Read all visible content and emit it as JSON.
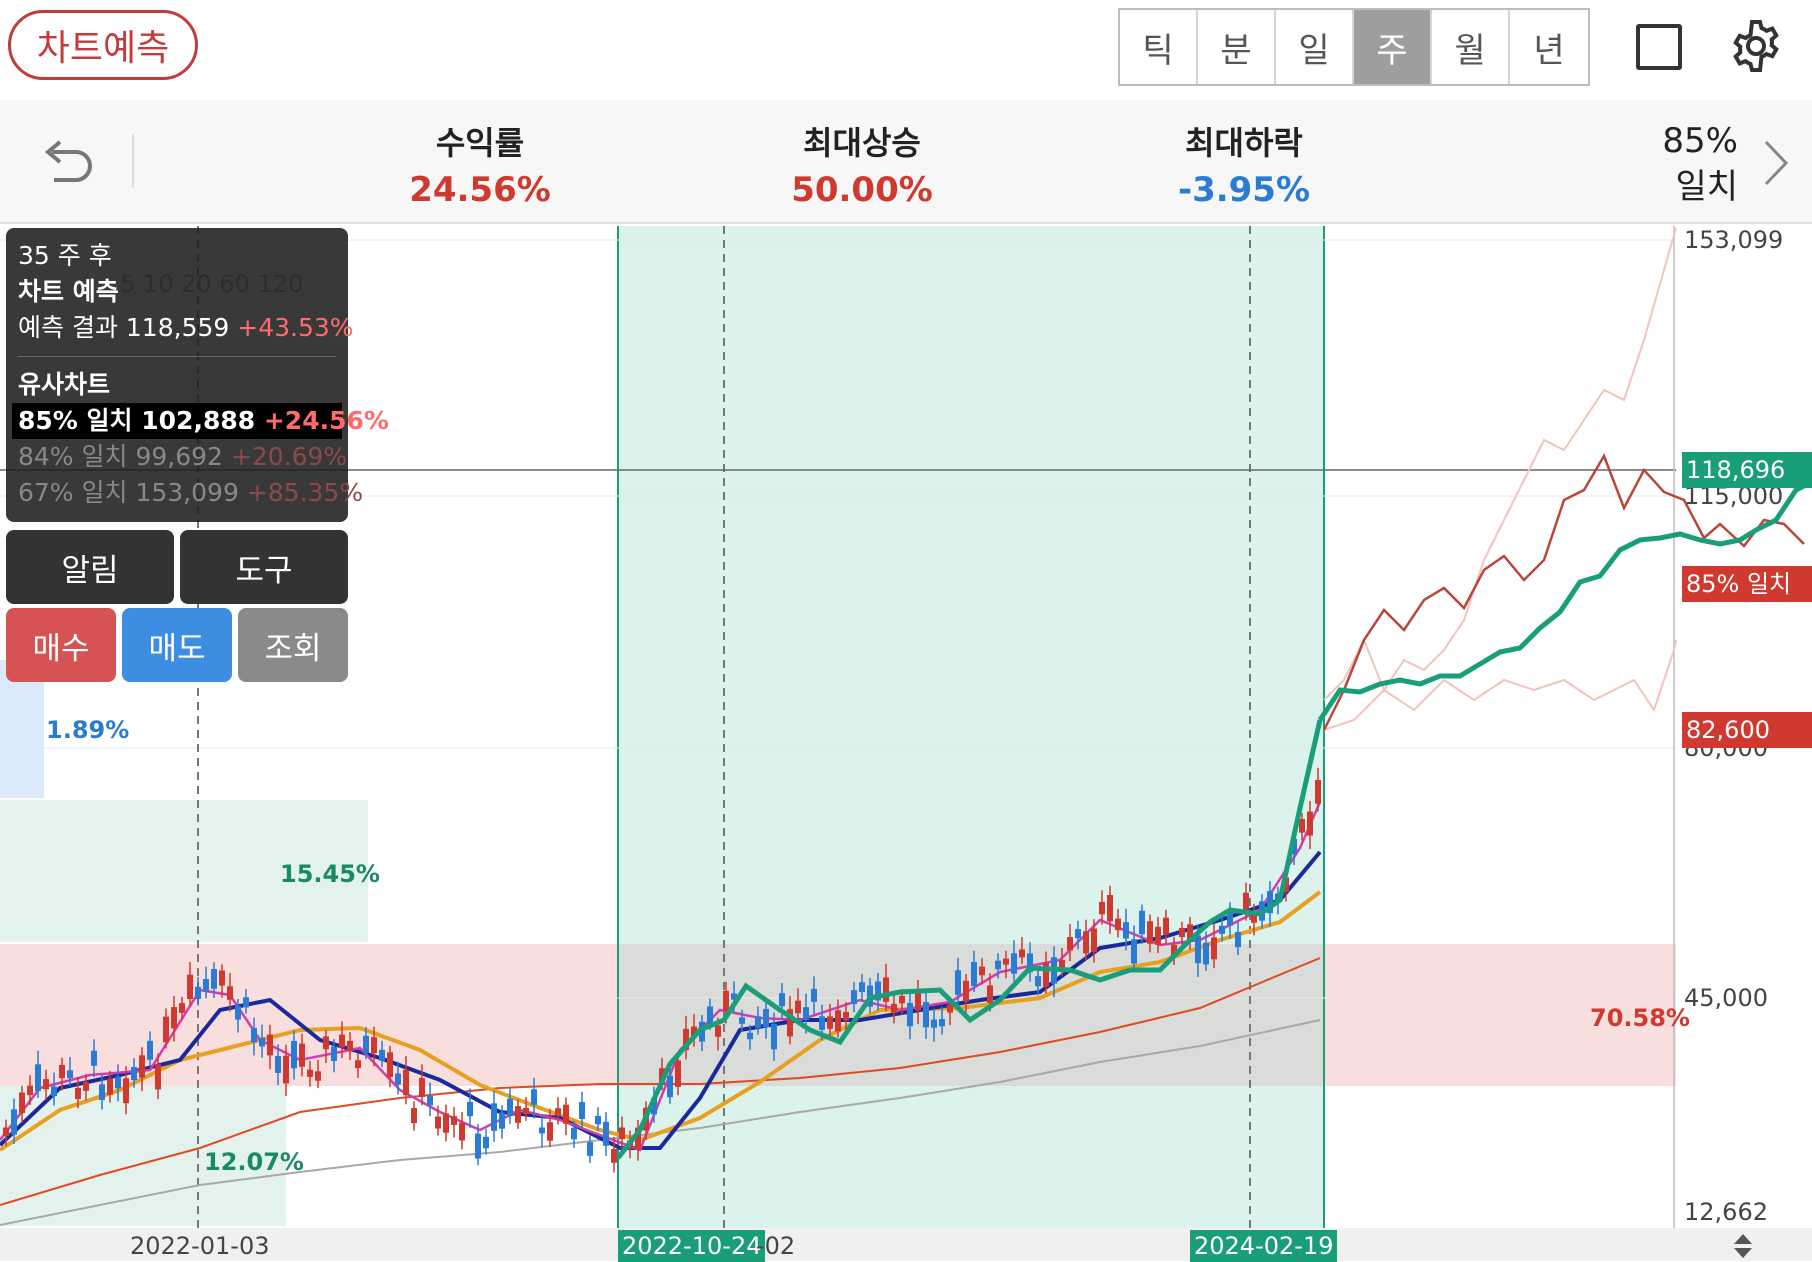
{
  "header": {
    "predict_button": "차트예측",
    "periods": [
      "틱",
      "분",
      "일",
      "주",
      "월",
      "년"
    ],
    "active_period": "주"
  },
  "summary": {
    "return_label": "수익률",
    "return_value": "24.56%",
    "max_rise_label": "최대상승",
    "max_rise_value": "50.00%",
    "max_fall_label": "최대하락",
    "max_fall_value": "-3.95%",
    "match_pct": "85%",
    "match_label": "일치"
  },
  "tooltip": {
    "weeks_after": "35 주 후",
    "section_prediction": "차트 예측",
    "prediction_label": "예측 결과",
    "prediction_price": "118,559",
    "prediction_change": "+43.53%",
    "section_similar": "유사차트",
    "similar": [
      {
        "label": "85% 일치",
        "price": "102,888",
        "change": "+24.56%",
        "highlight": true
      },
      {
        "label": "84% 일치",
        "price": "99,692",
        "change": "+20.69%",
        "highlight": false
      },
      {
        "label": "67% 일치",
        "price": "153,099",
        "change": "+85.35%",
        "highlight": false
      }
    ]
  },
  "buttons": {
    "alarm": "알림",
    "tools": "도구",
    "buy": "매수",
    "sell": "매도",
    "inquire": "조회"
  },
  "chart_data": {
    "type": "candlestick",
    "y_axis_labels": [
      "153,099",
      "115,000",
      "80,000",
      "45,000",
      "12,662"
    ],
    "y_axis_values": [
      153099,
      115000,
      80000,
      45000,
      12662
    ],
    "price_tags": [
      {
        "label": "118,696",
        "color": "#1a9e79"
      },
      {
        "label": "85% 일치",
        "color": "#d0392f"
      },
      {
        "label": "82,600",
        "color": "#d0392f"
      }
    ],
    "x_labels": [
      "2022-01-03",
      "2022-10-24",
      "-02",
      "2024-02-19"
    ],
    "highlighted_x_labels": [
      "2022-10-24",
      "2024-02-19"
    ],
    "ma_legend": [
      "5",
      "10",
      "20",
      "60",
      "120"
    ],
    "range_percents": [
      {
        "label": "1.89%",
        "color": "#2a7bd4"
      },
      {
        "label": "15.45%",
        "color": "#1a8a62"
      },
      {
        "label": "12.07%",
        "color": "#1a8a62"
      },
      {
        "label": "70.58%",
        "color": "#d0392f"
      }
    ],
    "colors": {
      "match_zone": "#dff3ee",
      "match_border": "#1a9e79",
      "prediction_line": "#1a9e79",
      "similar_line": "#b8473a",
      "up_candle": "#d0392f",
      "down_candle": "#2a7bd4",
      "ma5": "#d63ab0",
      "ma10": "#1a2a9a",
      "ma20": "#e8a020",
      "ma60": "#e04a20",
      "ma120": "#a0a0a0"
    }
  }
}
